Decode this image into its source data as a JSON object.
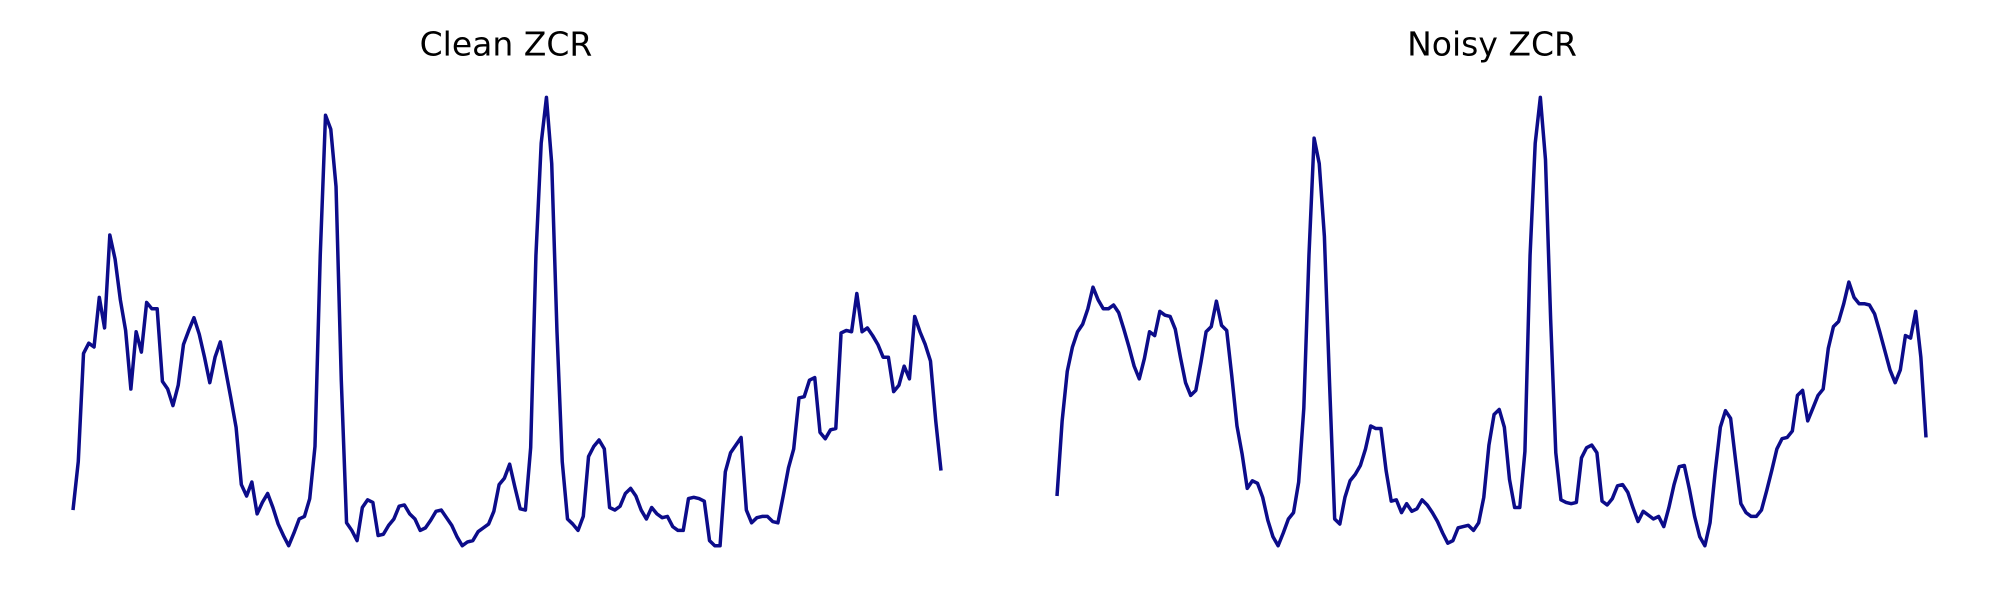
{
  "chart_data": [
    {
      "type": "line",
      "title": "Clean ZCR",
      "color": "#0c0c8a",
      "ylim": [
        0,
        0.38
      ],
      "values": [
        0.04,
        0.078,
        0.163,
        0.171,
        0.168,
        0.207,
        0.183,
        0.256,
        0.237,
        0.205,
        0.181,
        0.135,
        0.18,
        0.164,
        0.203,
        0.198,
        0.198,
        0.141,
        0.135,
        0.122,
        0.138,
        0.17,
        0.181,
        0.191,
        0.178,
        0.16,
        0.14,
        0.16,
        0.172,
        0.15,
        0.128,
        0.105,
        0.06,
        0.051,
        0.062,
        0.037,
        0.046,
        0.053,
        0.042,
        0.029,
        0.02,
        0.012,
        0.022,
        0.033,
        0.035,
        0.049,
        0.09,
        0.24,
        0.35,
        0.339,
        0.294,
        0.142,
        0.03,
        0.024,
        0.016,
        0.042,
        0.048,
        0.046,
        0.02,
        0.021,
        0.028,
        0.033,
        0.043,
        0.044,
        0.037,
        0.033,
        0.024,
        0.026,
        0.032,
        0.039,
        0.04,
        0.034,
        0.028,
        0.019,
        0.012,
        0.015,
        0.016,
        0.023,
        0.026,
        0.029,
        0.039,
        0.06,
        0.065,
        0.076,
        0.058,
        0.041,
        0.04,
        0.089,
        0.24,
        0.328,
        0.364,
        0.312,
        0.18,
        0.078,
        0.033,
        0.029,
        0.024,
        0.035,
        0.082,
        0.09,
        0.095,
        0.088,
        0.042,
        0.04,
        0.043,
        0.053,
        0.057,
        0.051,
        0.04,
        0.033,
        0.042,
        0.037,
        0.034,
        0.035,
        0.027,
        0.024,
        0.024,
        0.049,
        0.05,
        0.049,
        0.047,
        0.016,
        0.012,
        0.012,
        0.07,
        0.085,
        0.091,
        0.097,
        0.04,
        0.03,
        0.034,
        0.035,
        0.035,
        0.031,
        0.03,
        0.051,
        0.073,
        0.088,
        0.128,
        0.129,
        0.142,
        0.144,
        0.101,
        0.096,
        0.103,
        0.104,
        0.179,
        0.181,
        0.18,
        0.21,
        0.18,
        0.183,
        0.177,
        0.17,
        0.16,
        0.16,
        0.133,
        0.138,
        0.153,
        0.143,
        0.192,
        0.18,
        0.17,
        0.157,
        0.11,
        0.071
      ]
    },
    {
      "type": "line",
      "title": "Noisy ZCR",
      "color": "#0c0c8a",
      "ylim": [
        0,
        0.38
      ],
      "values": [
        0.051,
        0.11,
        0.149,
        0.168,
        0.18,
        0.186,
        0.198,
        0.215,
        0.205,
        0.198,
        0.198,
        0.201,
        0.195,
        0.182,
        0.168,
        0.153,
        0.143,
        0.159,
        0.18,
        0.177,
        0.196,
        0.193,
        0.192,
        0.182,
        0.16,
        0.14,
        0.13,
        0.134,
        0.156,
        0.18,
        0.184,
        0.204,
        0.185,
        0.181,
        0.145,
        0.106,
        0.084,
        0.057,
        0.063,
        0.061,
        0.05,
        0.032,
        0.019,
        0.012,
        0.022,
        0.033,
        0.038,
        0.062,
        0.12,
        0.24,
        0.332,
        0.312,
        0.255,
        0.14,
        0.033,
        0.029,
        0.05,
        0.063,
        0.068,
        0.075,
        0.088,
        0.106,
        0.104,
        0.104,
        0.071,
        0.047,
        0.048,
        0.038,
        0.045,
        0.039,
        0.041,
        0.048,
        0.044,
        0.038,
        0.031,
        0.022,
        0.014,
        0.016,
        0.026,
        0.027,
        0.028,
        0.024,
        0.03,
        0.05,
        0.091,
        0.115,
        0.119,
        0.105,
        0.064,
        0.042,
        0.042,
        0.086,
        0.24,
        0.328,
        0.364,
        0.315,
        0.19,
        0.085,
        0.048,
        0.046,
        0.045,
        0.046,
        0.081,
        0.089,
        0.091,
        0.085,
        0.047,
        0.044,
        0.049,
        0.059,
        0.06,
        0.054,
        0.042,
        0.031,
        0.039,
        0.036,
        0.033,
        0.035,
        0.027,
        0.042,
        0.06,
        0.074,
        0.075,
        0.056,
        0.035,
        0.019,
        0.012,
        0.03,
        0.07,
        0.105,
        0.118,
        0.112,
        0.078,
        0.045,
        0.038,
        0.035,
        0.035,
        0.04,
        0.055,
        0.071,
        0.088,
        0.096,
        0.097,
        0.102,
        0.13,
        0.134,
        0.11,
        0.12,
        0.13,
        0.135,
        0.167,
        0.184,
        0.188,
        0.202,
        0.219,
        0.207,
        0.202,
        0.202,
        0.201,
        0.194,
        0.18,
        0.165,
        0.15,
        0.14,
        0.15,
        0.177,
        0.175,
        0.196,
        0.16,
        0.097
      ]
    }
  ]
}
